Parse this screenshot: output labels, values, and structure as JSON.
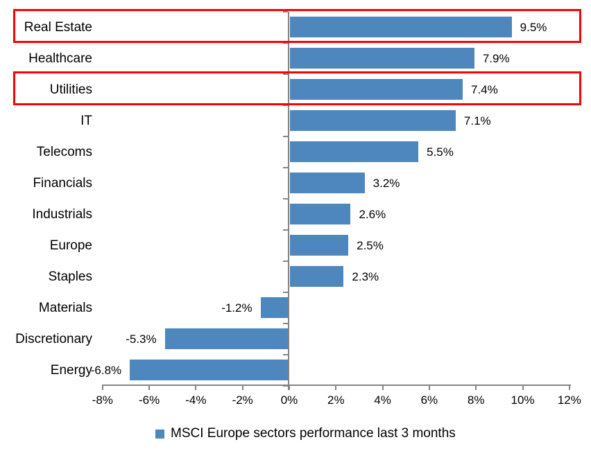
{
  "chart_data": {
    "type": "bar",
    "orientation": "horizontal",
    "title": "",
    "categories": [
      "Real Estate",
      "Healthcare",
      "Utilities",
      "IT",
      "Telecoms",
      "Financials",
      "Industrials",
      "Europe",
      "Staples",
      "Materials",
      "Discretionary",
      "Energy"
    ],
    "values": [
      9.5,
      7.9,
      7.4,
      7.1,
      5.5,
      3.2,
      2.6,
      2.5,
      2.3,
      -1.2,
      -5.3,
      -6.8
    ],
    "data_labels": [
      "9.5%",
      "7.9%",
      "7.4%",
      "7.1%",
      "5.5%",
      "3.2%",
      "2.6%",
      "2.5%",
      "2.3%",
      "-1.2%",
      "-5.3%",
      "-6.8%"
    ],
    "x_tick_labels": [
      "-8%",
      "-6%",
      "-4%",
      "-2%",
      "0%",
      "2%",
      "4%",
      "6%",
      "8%",
      "10%",
      "12%"
    ],
    "x_tick_values": [
      -8,
      -6,
      -4,
      -2,
      0,
      2,
      4,
      6,
      8,
      10,
      12
    ],
    "xlim": [
      -8,
      12
    ],
    "grid": "off",
    "legend_position": "bottom-center",
    "legend": {
      "label": "MSCI Europe sectors performance last 3 months",
      "marker": "square"
    },
    "highlighted_categories": [
      "Real Estate",
      "Utilities"
    ],
    "colors": {
      "bar": "#4E86BE",
      "axis": "#848484",
      "highlight": "#FF0000",
      "text": "#000000",
      "background": "#FFFFFF"
    }
  }
}
